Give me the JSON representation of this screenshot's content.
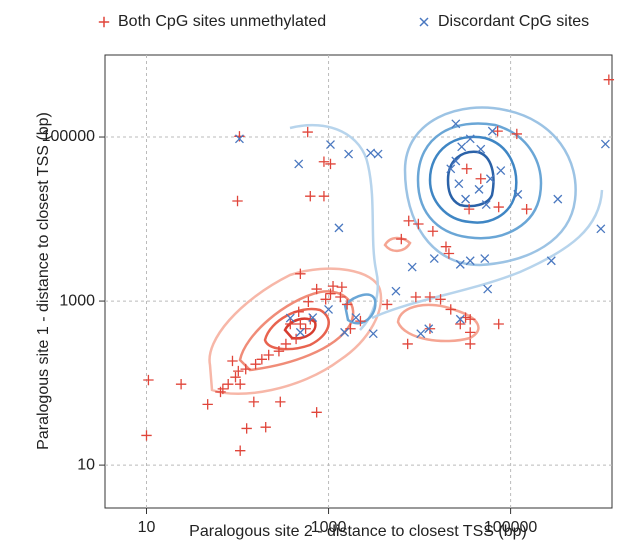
{
  "chart_data": {
    "type": "scatter",
    "xlabel": "Paralogous site 2 - distance to closest TSS (bp)",
    "ylabel": "Paralogous site 1 - distance to closest TSS (bp)",
    "xlim": [
      3.5,
      1300000
    ],
    "ylim": [
      3,
      1000000
    ],
    "xticks": [
      10,
      1000,
      100000
    ],
    "yticks": [
      10,
      1000,
      100000
    ],
    "xscale": "log",
    "yscale": "log",
    "grid": true,
    "legend": "top",
    "series": [
      {
        "name": "Both CpG sites unmethylated",
        "color": "#e0453a",
        "marker": "+",
        "x": [
          1200000,
          105,
          590,
          890,
          1050,
          630,
          890,
          100,
          7600,
          9700,
          14000,
          6300,
          21000,
          74000,
          150000,
          19500,
          35000,
          47000,
          72000,
          117000,
          33000,
          490,
          740,
          1120,
          1400,
          1350,
          1050,
          600,
          470,
          380,
          490,
          630,
          560,
          440,
          340,
          285,
          220,
          185,
          158,
          123,
          102,
          88,
          95,
          79,
          107,
          69,
          151,
          295,
          930,
          1740,
          2240,
          9100,
          13000,
          17000,
          22000,
          32000,
          36000,
          28000,
          7400,
          13000,
          36000,
          36000,
          74000,
          10.5,
          24,
          47,
          65,
          10,
          126,
          204,
          740,
          107,
          1600,
          4400
        ],
        "values": [
          500000,
          102000,
          115000,
          50000,
          47000,
          19000,
          19000,
          16600,
          9500,
          8700,
          7100,
          5700,
          3800,
          14000,
          13200,
          4600,
          13200,
          31000,
          118000,
          109000,
          41000,
          2150,
          1400,
          1520,
          1480,
          1120,
          1230,
          980,
          740,
          525,
          525,
          600,
          460,
          345,
          300,
          245,
          220,
          195,
          170,
          148,
          140,
          186,
          118,
          97,
          97,
          85,
          59,
          59,
          1050,
          460,
          570,
          1120,
          1120,
          1050,
          790,
          630,
          600,
          525,
          300,
          460,
          415,
          300,
          525,
          109,
          97,
          55,
          78,
          23,
          28,
          29,
          44,
          15,
          910,
          910
        ]
      },
      {
        "name": "Discordant CpG sites",
        "color": "#4a78c0",
        "marker": "x",
        "x": [
          1100000,
          1050,
          1660,
          105,
          2900,
          3500,
          470,
          1300,
          25000,
          63000,
          36000,
          29000,
          47000,
          25000,
          22000,
          27000,
          45000,
          32000,
          54000,
          60000,
          78000,
          120000,
          330000,
          280000,
          52000,
          36000,
          28000,
          14500,
          5500,
          56000,
          8300,
          12600,
          28000,
          1000,
          2000,
          1500,
          3100,
          10300,
          380,
          490,
          670,
          980000
        ],
        "values": [
          82000,
          81000,
          62000,
          95000,
          64000,
          62000,
          47000,
          7800,
          145000,
          118000,
          95000,
          76000,
          71000,
          51000,
          41000,
          27000,
          23000,
          17500,
          15000,
          31000,
          39000,
          20000,
          17500,
          3100,
          3300,
          3100,
          2800,
          3300,
          1320,
          1400,
          2600,
          460,
          600,
          790,
          630,
          415,
          400,
          400,
          620,
          415,
          630,
          7600
        ]
      }
    ]
  }
}
